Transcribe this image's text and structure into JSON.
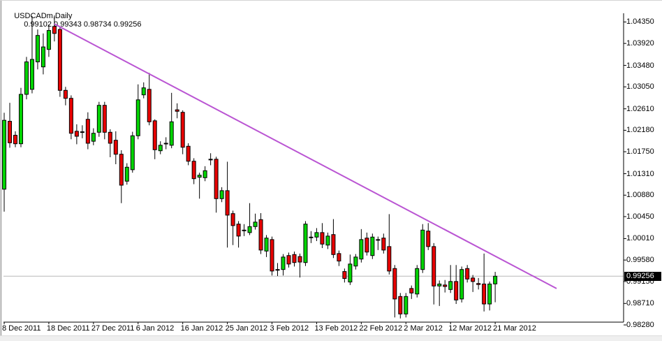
{
  "window": {
    "title_symbol": "USDCADm,Daily",
    "title_quotes": "0.99102 0.99343 0.98734 0.99256"
  },
  "chart_data": {
    "type": "candlestick",
    "symbol": "USDCADm",
    "timeframe": "Daily",
    "title": "USDCADm,Daily",
    "current_price": "0.99256",
    "ohlc_display": {
      "open": "0.99102",
      "high": "0.99343",
      "low": "0.98734",
      "close": "0.99256"
    },
    "ylim": [
      0.9828,
      1.0448
    ],
    "grid": "off",
    "legend": "none",
    "y_axis_labels": [
      "1.04350",
      "1.03920",
      "1.03480",
      "1.03050",
      "1.02610",
      "1.02180",
      "1.01750",
      "1.01310",
      "1.00880",
      "1.00450",
      "1.00010",
      "0.99580",
      "0.99150",
      "0.98710",
      "0.98280"
    ],
    "x_axis_labels": [
      {
        "label": "8 Dec 2011",
        "index": 0
      },
      {
        "label": "18 Dec 2011",
        "index": 8
      },
      {
        "label": "27 Dec 2011",
        "index": 16
      },
      {
        "label": "6 Jan 2012",
        "index": 24
      },
      {
        "label": "16 Jan 2012",
        "index": 32
      },
      {
        "label": "25 Jan 2012",
        "index": 40
      },
      {
        "label": "3 Feb 2012",
        "index": 48
      },
      {
        "label": "13 Feb 2012",
        "index": 56
      },
      {
        "label": "22 Feb 2012",
        "index": 64
      },
      {
        "label": "2 Mar 2012",
        "index": 72
      },
      {
        "label": "12 Mar 2012",
        "index": 80
      },
      {
        "label": "21 Mar 2012",
        "index": 88
      }
    ],
    "candles": [
      [
        1.01,
        1.0253,
        1.0055,
        1.0238
      ],
      [
        1.0236,
        1.0273,
        1.0183,
        1.0193
      ],
      [
        1.0208,
        1.0216,
        1.0184,
        1.0191
      ],
      [
        1.0191,
        1.0303,
        1.0184,
        1.029
      ],
      [
        1.029,
        1.0365,
        1.028,
        1.0355
      ],
      [
        1.03,
        1.0447,
        1.0292,
        1.036
      ],
      [
        1.0355,
        1.042,
        1.034,
        1.0408
      ],
      [
        1.0345,
        1.0412,
        1.033,
        1.0385
      ],
      [
        1.038,
        1.043,
        1.0365,
        1.0418
      ],
      [
        1.0426,
        1.0448,
        1.0396,
        1.0412
      ],
      [
        1.042,
        1.0426,
        1.0285,
        1.0298
      ],
      [
        1.0298,
        1.0305,
        1.0268,
        1.0282
      ],
      [
        1.0282,
        1.0288,
        1.02,
        1.0212
      ],
      [
        1.0216,
        1.023,
        1.019,
        1.0206
      ],
      [
        1.0215,
        1.0228,
        1.0202,
        1.0214
      ],
      [
        1.024,
        1.0254,
        1.018,
        1.0192
      ],
      [
        1.0196,
        1.0222,
        1.0188,
        1.0212
      ],
      [
        1.0214,
        1.0275,
        1.0205,
        1.0268
      ],
      [
        1.0268,
        1.0275,
        1.02,
        1.0214
      ],
      [
        1.0214,
        1.022,
        1.0164,
        1.0192
      ],
      [
        1.0198,
        1.0216,
        1.015,
        1.017
      ],
      [
        1.017,
        1.0178,
        1.0072,
        1.0108
      ],
      [
        1.0116,
        1.0152,
        1.0109,
        1.0144
      ],
      [
        1.0139,
        1.0215,
        1.0133,
        1.0207
      ],
      [
        1.0207,
        1.031,
        1.02,
        1.0279
      ],
      [
        1.0289,
        1.0314,
        1.0282,
        1.0303
      ],
      [
        1.03,
        1.0333,
        1.0228,
        1.0235
      ],
      [
        1.0237,
        1.024,
        1.016,
        1.0179
      ],
      [
        1.0177,
        1.0196,
        1.017,
        1.0188
      ],
      [
        1.0192,
        1.0204,
        1.018,
        1.0192
      ],
      [
        1.0188,
        1.0293,
        1.0182,
        1.0235
      ],
      [
        1.0259,
        1.0272,
        1.0242,
        1.0256
      ],
      [
        1.0254,
        1.0258,
        1.017,
        1.0184
      ],
      [
        1.0186,
        1.0192,
        1.0148,
        1.0156
      ],
      [
        1.0156,
        1.0162,
        1.011,
        1.0121
      ],
      [
        1.0124,
        1.0133,
        1.0081,
        1.0128
      ],
      [
        1.0123,
        1.0146,
        1.0116,
        1.0137
      ],
      [
        1.016,
        1.0172,
        1.0148,
        1.016
      ],
      [
        1.016,
        1.0165,
        1.0053,
        1.0081
      ],
      [
        1.0081,
        1.0104,
        1.0074,
        1.0097
      ],
      [
        1.0097,
        1.0155,
        0.9983,
        1.0048
      ],
      [
        1.0051,
        1.0057,
        0.9988,
        1.0027
      ],
      [
        1.003,
        1.0036,
        0.9983,
        1.0006
      ],
      [
        1.0018,
        1.003,
        1.0006,
        1.0018
      ],
      [
        1.0013,
        1.0072,
        1.0008,
        1.0025
      ],
      [
        1.0025,
        1.0051,
        1.0019,
        1.0034
      ],
      [
        1.0039,
        1.0052,
        0.997,
        0.9978
      ],
      [
        0.9976,
        1.0008,
        0.9964,
        1.0002
      ],
      [
        0.9999,
        1.0005,
        0.9927,
        0.9936
      ],
      [
        0.9939,
        0.9952,
        0.9926,
        0.9939
      ],
      [
        0.9939,
        0.997,
        0.9927,
        0.9964
      ],
      [
        0.9967,
        0.9973,
        0.9943,
        0.995
      ],
      [
        0.9969,
        0.9975,
        0.9945,
        0.9953
      ],
      [
        0.9965,
        0.9971,
        0.9923,
        0.9954
      ],
      [
        0.9953,
        1.0036,
        0.9946,
        1.003
      ],
      [
        1.0004,
        1.0016,
        0.9992,
        1.0004
      ],
      [
        1.0004,
        1.0022,
        0.9996,
        1.0013
      ],
      [
        1.0013,
        1.0032,
        0.9982,
        0.999
      ],
      [
        0.9988,
        1.0013,
        0.998,
        1.0006
      ],
      [
        1.0009,
        1.004,
        0.9962,
        0.9969
      ],
      [
        0.9971,
        0.9977,
        0.9946,
        0.9956
      ],
      [
        0.9935,
        0.9941,
        0.9913,
        0.9921
      ],
      [
        0.9914,
        0.9969,
        0.9908,
        0.995
      ],
      [
        0.9946,
        0.997,
        0.9939,
        0.9964
      ],
      [
        0.996,
        1.002,
        0.9953,
        0.9999
      ],
      [
        1.0002,
        1.0013,
        0.9967,
        0.9974
      ],
      [
        0.9967,
        1.0011,
        0.996,
        1.0004
      ],
      [
        0.9999,
        1.0005,
        0.9978,
        0.9999
      ],
      [
        1.0002,
        1.0011,
        0.9971,
        0.9978
      ],
      [
        0.9985,
        1.005,
        0.9929,
        0.9936
      ],
      [
        0.9941,
        0.9948,
        0.9843,
        0.988
      ],
      [
        0.9885,
        0.9892,
        0.9841,
        0.985
      ],
      [
        0.985,
        0.9892,
        0.9843,
        0.9885
      ],
      [
        0.9901,
        0.9907,
        0.988,
        0.9892
      ],
      [
        0.989,
        0.9948,
        0.9883,
        0.9941
      ],
      [
        0.9939,
        1.003,
        0.9932,
        1.0018
      ],
      [
        1.0016,
        1.0032,
        0.9978,
        0.9985
      ],
      [
        0.9985,
        0.9992,
        0.9869,
        0.9906
      ],
      [
        0.9906,
        0.9917,
        0.9866,
        0.991
      ],
      [
        0.9908,
        0.9918,
        0.9893,
        0.9905
      ],
      [
        0.9899,
        0.9948,
        0.9892,
        0.9915
      ],
      [
        0.9915,
        0.9948,
        0.987,
        0.9878
      ],
      [
        0.988,
        0.9945,
        0.9873,
        0.9939
      ],
      [
        0.9941,
        0.9948,
        0.9913,
        0.992
      ],
      [
        0.9922,
        0.9928,
        0.9894,
        0.9915
      ],
      [
        0.9911,
        0.9922,
        0.9899,
        0.9909
      ],
      [
        0.991,
        0.9971,
        0.9855,
        0.987
      ],
      [
        0.987,
        0.9915,
        0.9857,
        0.991
      ],
      [
        0.99102,
        0.99343,
        0.98734,
        0.99256
      ]
    ],
    "trendline": {
      "from": {
        "index": 9,
        "price": 1.0431
      },
      "to": {
        "index": 99,
        "price": 0.9901
      }
    },
    "colors": {
      "up": "#00D400",
      "down": "#E80000",
      "outline": "#000000",
      "trendline": "#BA55D3",
      "current_price_line": "#B8B8B8",
      "current_price_bg": "#000000",
      "current_price_text": "#FFFFFF",
      "axis": "#000000",
      "background": "#FFFFFF"
    }
  }
}
